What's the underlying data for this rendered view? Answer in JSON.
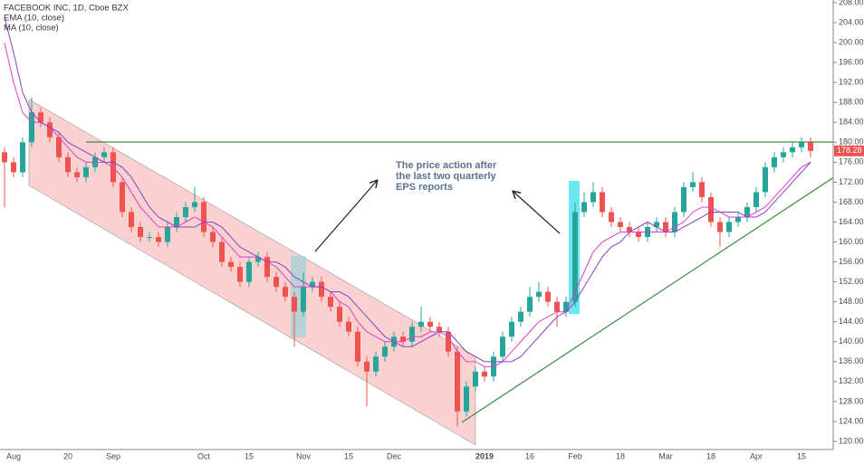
{
  "chart_data": {
    "type": "candlestick",
    "title": "FACEBOOK INC, 1D, Cboe BZX",
    "annotation": [
      "The price action after",
      "the last two quarterly",
      "EPS reports"
    ],
    "categories": [
      null,
      "Aug",
      null,
      null,
      null,
      null,
      null,
      "20",
      null,
      null,
      null,
      null,
      "Sep",
      null,
      null,
      null,
      null,
      null,
      null,
      null,
      null,
      null,
      "Oct",
      null,
      null,
      null,
      null,
      "15",
      null,
      null,
      null,
      null,
      null,
      "Nov",
      null,
      null,
      null,
      null,
      "15",
      null,
      null,
      null,
      null,
      "Dec",
      null,
      null,
      null,
      null,
      null,
      null,
      null,
      null,
      null,
      "2019",
      null,
      null,
      null,
      null,
      "16",
      null,
      null,
      null,
      null,
      "Feb",
      null,
      null,
      null,
      null,
      "18",
      null,
      null,
      null,
      null,
      "Mar",
      null,
      null,
      null,
      null,
      "18",
      null,
      null,
      null,
      null,
      "Apr",
      null,
      null,
      null,
      null,
      "15",
      null
    ],
    "open": [
      178,
      176,
      174,
      180,
      186,
      184,
      181,
      177,
      174,
      173,
      175,
      177,
      178,
      172,
      166,
      163,
      161,
      161,
      160,
      163,
      165,
      167,
      168,
      162,
      160,
      156,
      155,
      152,
      156,
      157,
      153,
      151,
      149,
      146,
      151,
      152,
      149,
      147,
      144,
      142,
      136,
      134,
      137,
      139,
      141,
      140,
      143,
      144,
      143,
      142,
      138,
      126,
      131,
      134,
      133,
      137,
      141,
      144,
      146,
      149,
      150,
      148,
      146,
      148,
      166,
      168,
      170,
      166,
      164,
      163,
      162,
      161,
      163,
      164,
      162,
      166,
      171,
      172,
      169,
      164,
      162,
      164,
      165,
      167,
      170,
      175,
      177,
      178,
      179,
      180
    ],
    "high": [
      179,
      177,
      181,
      189,
      187,
      185,
      182,
      178,
      175,
      176,
      178,
      179,
      179,
      173,
      167,
      164,
      162,
      162,
      164,
      166,
      168,
      171,
      169,
      163,
      161,
      157,
      156,
      157,
      158,
      158,
      154,
      152,
      150,
      154,
      153,
      153,
      150,
      148,
      145,
      143,
      137,
      138,
      140,
      142,
      142,
      144,
      147,
      145,
      144,
      143,
      139,
      132,
      135,
      135,
      138,
      142,
      145,
      147,
      151,
      152,
      151,
      149,
      149,
      168,
      170,
      172,
      171,
      167,
      165,
      164,
      163,
      164,
      165,
      165,
      167,
      172,
      174,
      173,
      170,
      165,
      165,
      166,
      168,
      171,
      176,
      178,
      179,
      180,
      181,
      181
    ],
    "low": [
      167,
      173,
      173,
      179,
      183,
      180,
      176,
      173,
      172,
      172,
      174,
      176,
      171,
      165,
      162,
      160,
      160,
      159,
      159,
      162,
      164,
      166,
      161,
      159,
      155,
      154,
      151,
      151,
      155,
      152,
      150,
      148,
      139,
      145,
      150,
      148,
      146,
      143,
      141,
      135,
      127,
      133,
      136,
      138,
      139,
      139,
      142,
      142,
      141,
      137,
      123,
      125,
      130,
      132,
      132,
      136,
      140,
      143,
      145,
      148,
      147,
      143,
      145,
      147,
      165,
      167,
      165,
      163,
      162,
      161,
      160,
      160,
      162,
      161,
      161,
      165,
      170,
      168,
      163,
      159,
      161,
      163,
      164,
      166,
      169,
      174,
      176,
      177,
      178,
      177
    ],
    "close": [
      176,
      174,
      180,
      186,
      184,
      181,
      177,
      174,
      173,
      175,
      177,
      178,
      172,
      166,
      163,
      161,
      161,
      160,
      163,
      165,
      167,
      168,
      162,
      160,
      156,
      155,
      152,
      156,
      157,
      153,
      151,
      149,
      146,
      151,
      152,
      149,
      147,
      144,
      142,
      136,
      134,
      137,
      139,
      141,
      140,
      143,
      144,
      143,
      142,
      138,
      126,
      131,
      134,
      133,
      137,
      141,
      144,
      146,
      149,
      150,
      148,
      146,
      148,
      166,
      168,
      170,
      166,
      164,
      163,
      162,
      161,
      163,
      164,
      162,
      166,
      171,
      172,
      169,
      164,
      162,
      164,
      165,
      167,
      170,
      175,
      177,
      178,
      179,
      180,
      178.28
    ],
    "close_label": "178.28",
    "up_color": "#26a69a",
    "down_color": "#ef5350",
    "series": [
      {
        "name": "EMA (10, close)",
        "color": "#e040c8",
        "values": [
          200,
          192,
          186,
          184,
          184,
          183,
          181,
          179,
          177,
          176,
          176,
          176,
          175,
          173,
          170,
          167,
          165,
          163,
          163,
          163,
          164,
          165,
          164,
          163,
          161,
          159,
          157,
          157,
          157,
          156,
          155,
          153,
          151,
          151,
          151,
          151,
          150,
          148,
          147,
          144,
          142,
          141,
          140,
          140,
          140,
          141,
          141,
          142,
          142,
          141,
          138,
          136,
          136,
          135,
          135,
          136,
          138,
          140,
          142,
          144,
          145,
          146,
          146,
          150,
          154,
          158,
          160,
          161,
          162,
          162,
          162,
          162,
          162,
          162,
          163,
          164,
          166,
          167,
          167,
          166,
          165,
          165,
          165,
          166,
          167,
          169,
          171,
          173,
          175,
          176
        ]
      },
      {
        "name": "MA (10, close)",
        "color": "#8e3fbf",
        "values": [
          205,
          198,
          190,
          186,
          184,
          183,
          182,
          180,
          179,
          178,
          177,
          176,
          176,
          175,
          173,
          170,
          167,
          165,
          164,
          163,
          163,
          163,
          164,
          164,
          163,
          161,
          159,
          158,
          157,
          156,
          156,
          155,
          153,
          152,
          151,
          151,
          150,
          150,
          149,
          147,
          145,
          143,
          141,
          140,
          139,
          139,
          140,
          141,
          142,
          142,
          140,
          138,
          137,
          136,
          136,
          136,
          136,
          137,
          139,
          141,
          143,
          145,
          146,
          148,
          151,
          154,
          157,
          159,
          160,
          162,
          163,
          164,
          163,
          162,
          162,
          163,
          164,
          165,
          166,
          166,
          166,
          166,
          165,
          165,
          166,
          168,
          170,
          172,
          174,
          176
        ]
      }
    ],
    "ylim": [
      119,
      209
    ],
    "yticks": [
      {
        "value": 120,
        "label": "120.00"
      },
      {
        "value": 124,
        "label": "124.00"
      },
      {
        "value": 128,
        "label": "128.00"
      },
      {
        "value": 132,
        "label": "132.00"
      },
      {
        "value": 136,
        "label": "136.00"
      },
      {
        "value": 140,
        "label": "140.00"
      },
      {
        "value": 144,
        "label": "144.00"
      },
      {
        "value": 148,
        "label": "148.00"
      },
      {
        "value": 152,
        "label": "152.00"
      },
      {
        "value": 156,
        "label": "156.00"
      },
      {
        "value": 160,
        "label": "160.00"
      },
      {
        "value": 164,
        "label": "164.00"
      },
      {
        "value": 168,
        "label": "168.00"
      },
      {
        "value": 172,
        "label": "172.00"
      },
      {
        "value": 176,
        "label": "176.00"
      },
      {
        "value": 180,
        "label": "180.00"
      },
      {
        "value": 184,
        "label": "184.00"
      },
      {
        "value": 188,
        "label": "188.00"
      },
      {
        "value": 192,
        "label": "192.00"
      },
      {
        "value": 196,
        "label": "196.00"
      },
      {
        "value": 200,
        "label": "200.00"
      },
      {
        "value": 204,
        "label": "204.00"
      },
      {
        "value": 208,
        "label": "208.00"
      }
    ]
  }
}
